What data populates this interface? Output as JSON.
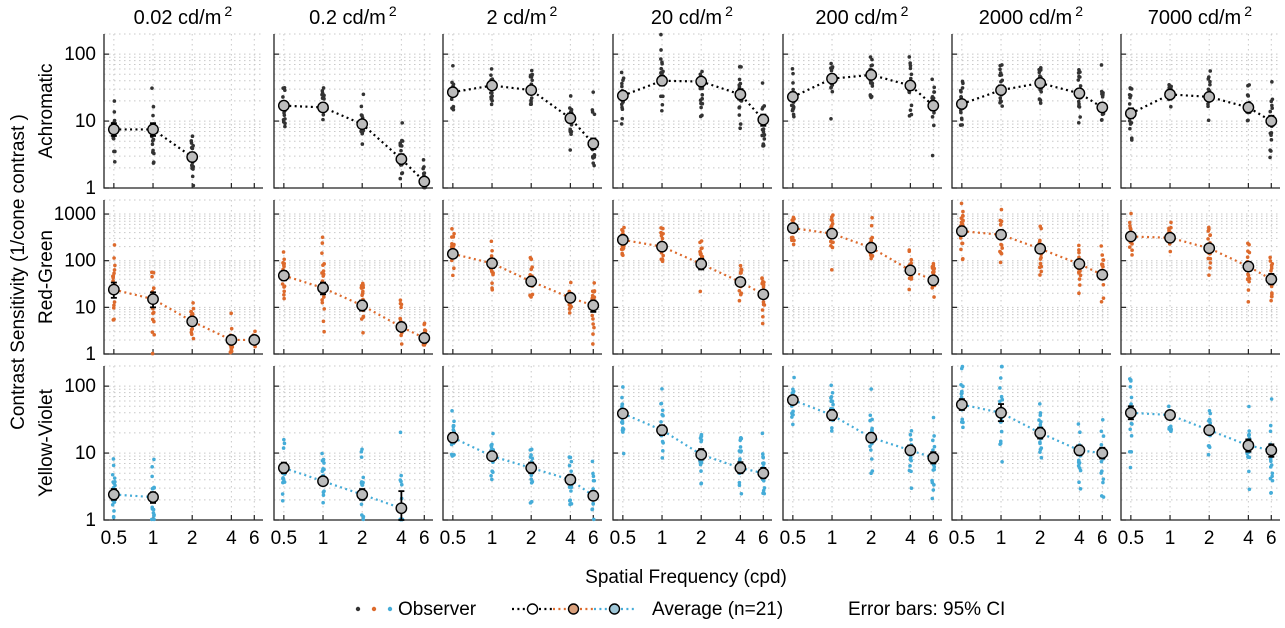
{
  "chart_data": {
    "type": "scatter",
    "figure": {
      "ylabel": "Contrast Sensitivity (1/cone contrast )",
      "xlabel": "Spatial Frequency (cpd)",
      "x_ticks": [
        0.5,
        1,
        2,
        4,
        6
      ],
      "x_tick_labels": [
        "0.5",
        "1",
        "2",
        "4",
        "6"
      ],
      "x_scale": "log",
      "y_scale": "log",
      "grid": true,
      "columns": [
        "0.02 cd/m",
        "0.2 cd/m",
        "2 cd/m",
        "20 cd/m",
        "200 cd/m",
        "2000 cd/m",
        "7000 cd/m"
      ],
      "unit_superscript": "2",
      "rows": [
        {
          "name": "Achromatic",
          "color": "#333333",
          "ylim": [
            1,
            200
          ],
          "y_ticks": [
            1,
            10,
            100
          ],
          "y_tick_labels": [
            "1",
            "10",
            "100"
          ]
        },
        {
          "name": "Red-Green",
          "color": "#dd6a2c",
          "ylim": [
            1,
            2000
          ],
          "y_ticks": [
            1,
            10,
            100,
            1000
          ],
          "y_tick_labels": [
            "1",
            "10",
            "100",
            "1000"
          ]
        },
        {
          "name": "Yellow-Violet",
          "color": "#45acd8",
          "ylim": [
            1,
            200
          ],
          "y_ticks": [
            1,
            10,
            100
          ],
          "y_tick_labels": [
            "1",
            "10",
            "100"
          ]
        }
      ]
    },
    "legend": {
      "observer": "Observer",
      "average": "Average (n=21)",
      "error": "Error bars: 95% CI",
      "dot_colors": [
        "#333333",
        "#dd6a2c",
        "#45acd8"
      ],
      "marker_fills": [
        "#ffffff",
        "#d9a07c",
        "#9fc7d8"
      ]
    },
    "panels": [
      {
        "row": "Achromatic",
        "column": "0.02 cd/m",
        "x": [
          0.5,
          1,
          2
        ],
        "y": [
          7.5,
          7.5,
          2.9
        ],
        "ci": [
          [
            6.0,
            9.3
          ],
          [
            6.0,
            9.3
          ],
          [
            2.5,
            3.4
          ]
        ]
      },
      {
        "row": "Achromatic",
        "column": "0.2 cd/m",
        "x": [
          0.5,
          1,
          2,
          4,
          6
        ],
        "y": [
          17,
          16,
          9,
          2.7,
          1.25
        ],
        "ci": [
          [
            15,
            19.5
          ],
          [
            14,
            18.5
          ],
          [
            8,
            10.2
          ],
          [
            2.3,
            3.2
          ],
          [
            1.1,
            1.4
          ]
        ]
      },
      {
        "row": "Achromatic",
        "column": "2 cd/m",
        "x": [
          0.5,
          1,
          2,
          4,
          6
        ],
        "y": [
          27,
          34,
          29,
          11,
          4.6
        ],
        "ci": [
          [
            24,
            30
          ],
          [
            30,
            38
          ],
          [
            25,
            33
          ],
          [
            9.5,
            13
          ],
          [
            3.8,
            5.5
          ]
        ]
      },
      {
        "row": "Achromatic",
        "column": "20 cd/m",
        "x": [
          0.5,
          1,
          2,
          4,
          6
        ],
        "y": [
          24,
          40,
          39,
          25,
          10.5
        ],
        "ci": [
          [
            21,
            28
          ],
          [
            34,
            47
          ],
          [
            33,
            45
          ],
          [
            21,
            30
          ],
          [
            8.5,
            12.5
          ]
        ]
      },
      {
        "row": "Achromatic",
        "column": "200 cd/m",
        "x": [
          0.5,
          1,
          2,
          4,
          6
        ],
        "y": [
          23,
          43,
          49,
          34,
          17
        ],
        "ci": [
          [
            20,
            27
          ],
          [
            38,
            49
          ],
          [
            43,
            55
          ],
          [
            29,
            39
          ],
          [
            14.5,
            20
          ]
        ]
      },
      {
        "row": "Achromatic",
        "column": "2000 cd/m",
        "x": [
          0.5,
          1,
          2,
          4,
          6
        ],
        "y": [
          18,
          29,
          37,
          26,
          16
        ],
        "ci": [
          [
            16,
            20.5
          ],
          [
            25,
            34
          ],
          [
            32,
            42
          ],
          [
            22,
            30
          ],
          [
            14,
            18.5
          ]
        ]
      },
      {
        "row": "Achromatic",
        "column": "7000 cd/m",
        "x": [
          0.5,
          1,
          2,
          4,
          6
        ],
        "y": [
          13,
          25,
          23,
          16,
          10
        ],
        "ci": [
          [
            11,
            15.5
          ],
          [
            23,
            27.5
          ],
          [
            20,
            26
          ],
          [
            13.5,
            18.5
          ],
          [
            8.5,
            12
          ]
        ]
      },
      {
        "row": "Red-Green",
        "column": "0.02 cd/m",
        "x": [
          0.5,
          1,
          2,
          4,
          6
        ],
        "y": [
          24,
          15,
          5,
          2,
          2
        ],
        "ci": [
          [
            16,
            34
          ],
          [
            10,
            21
          ],
          [
            4.3,
            5.8
          ],
          [
            1.7,
            2.4
          ],
          [
            1.9,
            2.1
          ]
        ]
      },
      {
        "row": "Red-Green",
        "column": "0.2 cd/m",
        "x": [
          0.5,
          1,
          2,
          4,
          6
        ],
        "y": [
          48,
          26,
          11,
          3.8,
          2.2
        ],
        "ci": [
          [
            38,
            60
          ],
          [
            19,
            34
          ],
          [
            8.5,
            14
          ],
          [
            3.1,
            4.7
          ],
          [
            2.0,
            2.5
          ]
        ]
      },
      {
        "row": "Red-Green",
        "column": "2 cd/m",
        "x": [
          0.5,
          1,
          2,
          4,
          6
        ],
        "y": [
          140,
          88,
          36,
          16,
          11
        ],
        "ci": [
          [
            120,
            165
          ],
          [
            70,
            110
          ],
          [
            29,
            45
          ],
          [
            13.5,
            19
          ],
          [
            8,
            14
          ]
        ]
      },
      {
        "row": "Red-Green",
        "column": "20 cd/m",
        "x": [
          0.5,
          1,
          2,
          4,
          6
        ],
        "y": [
          280,
          200,
          85,
          35,
          19
        ],
        "ci": [
          [
            240,
            330
          ],
          [
            170,
            235
          ],
          [
            65,
            110
          ],
          [
            30,
            41
          ],
          [
            16,
            23
          ]
        ]
      },
      {
        "row": "Red-Green",
        "column": "200 cd/m",
        "x": [
          0.5,
          1,
          2,
          4,
          6
        ],
        "y": [
          500,
          380,
          190,
          62,
          38
        ],
        "ci": [
          [
            440,
            570
          ],
          [
            310,
            460
          ],
          [
            155,
            230
          ],
          [
            53,
            72
          ],
          [
            32,
            45
          ]
        ]
      },
      {
        "row": "Red-Green",
        "column": "2000 cd/m",
        "x": [
          0.5,
          1,
          2,
          4,
          6
        ],
        "y": [
          430,
          360,
          180,
          85,
          50
        ],
        "ci": [
          [
            340,
            540
          ],
          [
            290,
            450
          ],
          [
            150,
            215
          ],
          [
            70,
            105
          ],
          [
            40,
            62
          ]
        ]
      },
      {
        "row": "Red-Green",
        "column": "7000 cd/m",
        "x": [
          0.5,
          1,
          2,
          4,
          6
        ],
        "y": [
          330,
          310,
          185,
          75,
          40
        ],
        "ci": [
          [
            280,
            390
          ],
          [
            270,
            355
          ],
          [
            155,
            220
          ],
          [
            60,
            94
          ],
          [
            31,
            52
          ]
        ]
      },
      {
        "row": "Yellow-Violet",
        "column": "0.02 cd/m",
        "x": [
          0.5,
          1
        ],
        "y": [
          2.4,
          2.2
        ],
        "ci": [
          [
            2.0,
            2.9
          ],
          [
            1.8,
            2.6
          ]
        ]
      },
      {
        "row": "Yellow-Violet",
        "column": "0.2 cd/m",
        "x": [
          0.5,
          1,
          2,
          4
        ],
        "y": [
          6,
          3.8,
          2.4,
          1.5
        ],
        "ci": [
          [
            5.0,
            7.2
          ],
          [
            3.3,
            4.4
          ],
          [
            2.0,
            2.9
          ],
          [
            1.0,
            2.7
          ]
        ]
      },
      {
        "row": "Yellow-Violet",
        "column": "2 cd/m",
        "x": [
          0.5,
          1,
          2,
          4,
          6
        ],
        "y": [
          17,
          9,
          6,
          4,
          2.3
        ],
        "ci": [
          [
            14.5,
            20
          ],
          [
            7.8,
            10.5
          ],
          [
            5.0,
            7.2
          ],
          [
            3.4,
            4.7
          ],
          [
            2.0,
            2.7
          ]
        ]
      },
      {
        "row": "Yellow-Violet",
        "column": "20 cd/m",
        "x": [
          0.5,
          1,
          2,
          4,
          6
        ],
        "y": [
          39,
          22,
          9.5,
          6,
          5
        ],
        "ci": [
          [
            35,
            44
          ],
          [
            18.5,
            26
          ],
          [
            8,
            11.5
          ],
          [
            5.0,
            7.3
          ],
          [
            4.2,
            6.0
          ]
        ]
      },
      {
        "row": "Yellow-Violet",
        "column": "200 cd/m",
        "x": [
          0.5,
          1,
          2,
          4,
          6
        ],
        "y": [
          62,
          37,
          17,
          11,
          8.5
        ],
        "ci": [
          [
            55,
            70
          ],
          [
            31,
            44
          ],
          [
            14.5,
            20
          ],
          [
            9.5,
            13
          ],
          [
            7.0,
            10.3
          ]
        ]
      },
      {
        "row": "Yellow-Violet",
        "column": "2000 cd/m",
        "x": [
          0.5,
          1,
          2,
          4,
          6
        ],
        "y": [
          53,
          40,
          20,
          11,
          10
        ],
        "ci": [
          [
            44,
            64
          ],
          [
            30,
            54
          ],
          [
            16.5,
            24
          ],
          [
            9.3,
            13
          ],
          [
            8.3,
            12
          ]
        ]
      },
      {
        "row": "Yellow-Violet",
        "column": "7000 cd/m",
        "x": [
          0.5,
          1,
          2,
          4,
          6
        ],
        "y": [
          40,
          37,
          22,
          13,
          11
        ],
        "ci": [
          [
            32,
            50
          ],
          [
            33,
            41
          ],
          [
            19.5,
            25
          ],
          [
            10.5,
            16
          ],
          [
            8.8,
            13.5
          ]
        ]
      }
    ]
  }
}
